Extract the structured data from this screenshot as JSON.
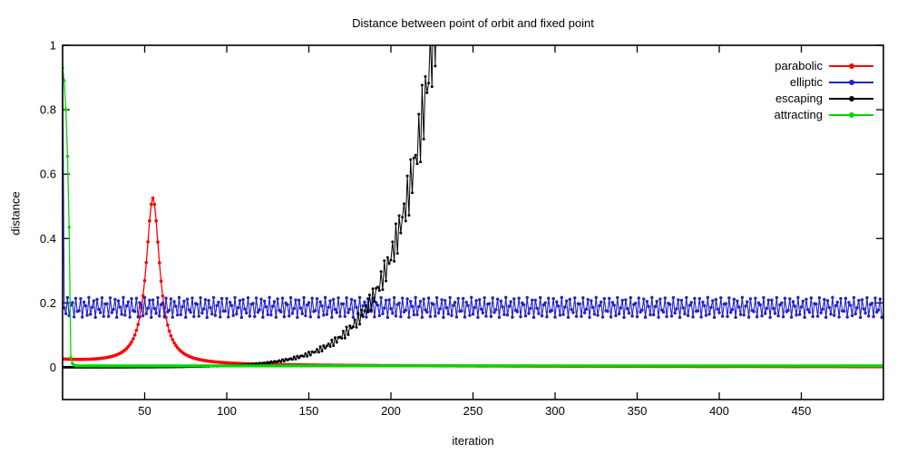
{
  "chart_data": {
    "type": "line",
    "title": "Distance between point of orbit and fixed point",
    "xlabel": "iteration",
    "ylabel": "distance",
    "xlim": [
      0,
      500
    ],
    "ylim": [
      -0.1,
      1.0
    ],
    "x_ticks": [
      50,
      100,
      150,
      200,
      250,
      300,
      350,
      400,
      450
    ],
    "y_ticks": [
      {
        "value": 0,
        "label": "0"
      },
      {
        "value": 0.2,
        "label": "0.2"
      },
      {
        "value": 0.4,
        "label": "0.4"
      },
      {
        "value": 0.6,
        "label": "0.6"
      },
      {
        "value": 0.8,
        "label": "0.8"
      },
      {
        "value": 1,
        "label": "1"
      }
    ],
    "grid": false,
    "legend_position": "top-right-inside",
    "background": "#ffffff",
    "axis_color": "#000000",
    "series": [
      {
        "name": "parabolic",
        "color": "#ff0000",
        "marker": "dot",
        "model": {
          "kind": "peak_with_tail",
          "peak_i": 55,
          "peak_v": 0.515,
          "width": 5,
          "tail_a": 1.2,
          "tail_b": 55,
          "n": 500
        },
        "keypoints": [
          [
            0,
            0.026
          ],
          [
            30,
            0.031
          ],
          [
            45,
            0.12
          ],
          [
            50,
            0.27
          ],
          [
            55,
            0.53
          ],
          [
            58,
            0.47
          ],
          [
            62,
            0.19
          ],
          [
            70,
            0.06
          ],
          [
            100,
            0.018
          ],
          [
            200,
            0.008
          ],
          [
            499,
            0.004
          ]
        ]
      },
      {
        "name": "elliptic",
        "color": "#2121cc",
        "marker": "dot",
        "model": {
          "kind": "quasiperiodic",
          "first_value": 1.0,
          "center": 0.186,
          "amplitude": 0.031,
          "freq": 2.3999,
          "phase": 0.8,
          "n": 500
        },
        "keypoints": [
          [
            0,
            1.0
          ],
          [
            1,
            0.19
          ],
          [
            250,
            0.19
          ],
          [
            499,
            0.19
          ]
        ],
        "band": {
          "center": 0.186,
          "min": 0.155,
          "max": 0.217
        }
      },
      {
        "name": "escaping",
        "color": "#000000",
        "marker": "dot",
        "model": {
          "kind": "exp_growth",
          "d0": 7.3e-05,
          "k": 0.0423,
          "mod_amp": 0.14,
          "mod_freq": 2.732,
          "stop_above": 1.4,
          "n": 500
        },
        "keypoints": [
          [
            0,
            0.0001
          ],
          [
            120,
            0.012
          ],
          [
            150,
            0.05
          ],
          [
            185,
            0.2
          ],
          [
            210,
            0.45
          ],
          [
            219,
            0.78
          ],
          [
            220,
            1.0
          ]
        ]
      },
      {
        "name": "attracting",
        "color": "#00d800",
        "marker": "dot",
        "model": {
          "kind": "geometric_decay",
          "initial": [
            0.93,
            0.89,
            0.8,
            0.655,
            0.435,
            0.03,
            0.012,
            0.007
          ],
          "floor": 0.0045,
          "n": 500
        },
        "keypoints": [
          [
            0,
            0.93
          ],
          [
            2,
            0.8
          ],
          [
            4,
            0.435
          ],
          [
            5,
            0.03
          ],
          [
            10,
            0.005
          ],
          [
            499,
            0.004
          ]
        ]
      }
    ]
  }
}
